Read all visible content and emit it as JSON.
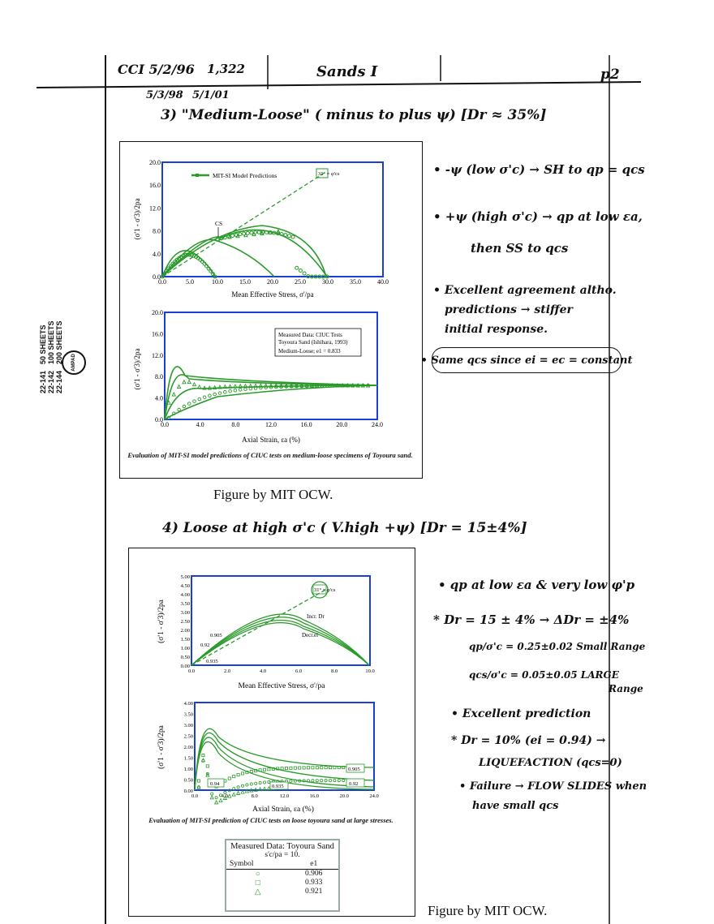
{
  "header": {
    "left_line1": "CCI 5/2/96",
    "left_line1b": "1,322",
    "left_line2": "5/3/98",
    "left_line2b": "5/1/01",
    "title": "Sands I",
    "page": "p2"
  },
  "binding_label": {
    "codes": [
      "22-141",
      "22-142",
      "22-144"
    ],
    "sheets": [
      "50 SHEETS",
      "100 SHEETS",
      "200 SHEETS"
    ],
    "brand": "AMPAD"
  },
  "section3": {
    "heading": "3) \"Medium-Loose\" ( minus to plus ψ) [Dr ≈ 35%]",
    "notes": [
      "• -ψ (low σ'c) → SH to qp = qcs",
      "• +ψ (high σ'c) → qp at low εa,",
      "then SS to qcs",
      "• Excellent agreement altho.",
      "predictions → stiffer",
      "initial response.",
      "• Same qcs since ei = ec = constant"
    ],
    "figure": {
      "top_legend": "MIT-SI Model Predictions",
      "cs_label": "CS",
      "phi_label": "31° = φ'cs",
      "top_xlabel": "Mean Effective Stress, σ'/pa",
      "top_ylabel": "(σ'1 - σ'3)/2pa",
      "top_xticks": [
        "0.0",
        "5.0",
        "10.0",
        "15.0",
        "20.0",
        "25.0",
        "30.0",
        "35.0",
        "40.0"
      ],
      "top_yticks": [
        "0.0",
        "4.0",
        "8.0",
        "12.0",
        "16.0",
        "20.0"
      ],
      "bottom_box": [
        "Measured Data: CIUC Tests",
        "Toyoura Sand (Ishihara, 1993)",
        "Medium-Loose; e1 = 0.833"
      ],
      "bottom_xlabel": "Axial Strain, εa (%)",
      "bottom_ylabel": "(σ'1 - σ'3)/2pa",
      "bottom_xticks": [
        "0.0",
        "4.0",
        "8.0",
        "12.0",
        "16.0",
        "20.0",
        "24.0"
      ],
      "bottom_yticks": [
        "0.0",
        "4.0",
        "8.0",
        "12.0",
        "16.0",
        "20.0"
      ],
      "caption": "Evaluation of MIT-SI model predictions of CIUC tests on medium-loose specimens of Toyoura sand."
    },
    "credit": "Figure by MIT OCW."
  },
  "section4": {
    "heading": "4) Loose at high σ'c ( V.high +ψ) [Dr = 15±4%]",
    "notes": [
      "• qp at low εa & very low φ'p",
      "* Dr = 15 ± 4% → ΔDr = ±4%",
      "qp/σ'c = 0.25±0.02  Small Range",
      "qcs/σ'c = 0.05±0.05  LARGE",
      "Range",
      "• Excellent prediction",
      "* Dr = 10% (ei = 0.94) →",
      "LIQUEFACTION (qcs=0)",
      "• Failure → FLOW SLIDES when",
      "have small qcs"
    ],
    "figure": {
      "phi_label": "31° = φ'cs",
      "incr_label": "Incr. Dr",
      "decr_label": "Decr.ei",
      "void_labels": [
        "0.92",
        "0.905",
        "0.935"
      ],
      "top_xlabel": "Mean Effective Stress, σ'/pa",
      "top_ylabel": "(σ'1 - σ'3)/2pa",
      "top_xticks": [
        "0.0",
        "2.0",
        "4.0",
        "6.0",
        "8.0",
        "10.0"
      ],
      "top_yticks": [
        "0.00",
        "0.50",
        "1.00",
        "1.50",
        "2.00",
        "2.50",
        "3.00",
        "3.50",
        "4.00",
        "4.50",
        "5.00"
      ],
      "bottom_xlabel": "Axial Strain, εa (%)",
      "bottom_ylabel": "(σ'1 - σ'3)/2pa",
      "bottom_xticks": [
        "0.0",
        "4.0",
        "8.0",
        "12.0",
        "16.0",
        "20.0",
        "24.0"
      ],
      "bottom_yticks": [
        "0.00",
        "0.50",
        "1.00",
        "1.50",
        "2.00",
        "2.50",
        "3.00",
        "3.50",
        "4.00"
      ],
      "bottom_labels": [
        "0.905",
        "0.92",
        "0.94",
        "0.935"
      ],
      "caption": "Evaluation of MIT-SI prediction of CIUC tests on loose toyoura sand at large stresses.",
      "legend_title": "Measured Data: Toyoura Sand",
      "legend_sub": "s'c/pa = 10.",
      "legend_col1": "Symbol",
      "legend_col2": "e1",
      "legend_rows": [
        {
          "symbol": "○",
          "value": "0.906"
        },
        {
          "symbol": "□",
          "value": "0.933"
        },
        {
          "symbol": "△",
          "value": "0.921"
        }
      ]
    },
    "credit": "Figure by MIT OCW."
  },
  "colors": {
    "plot_green": "#2a9a2a",
    "axis_blue": "#1b3fd6",
    "ink": "#111111"
  }
}
